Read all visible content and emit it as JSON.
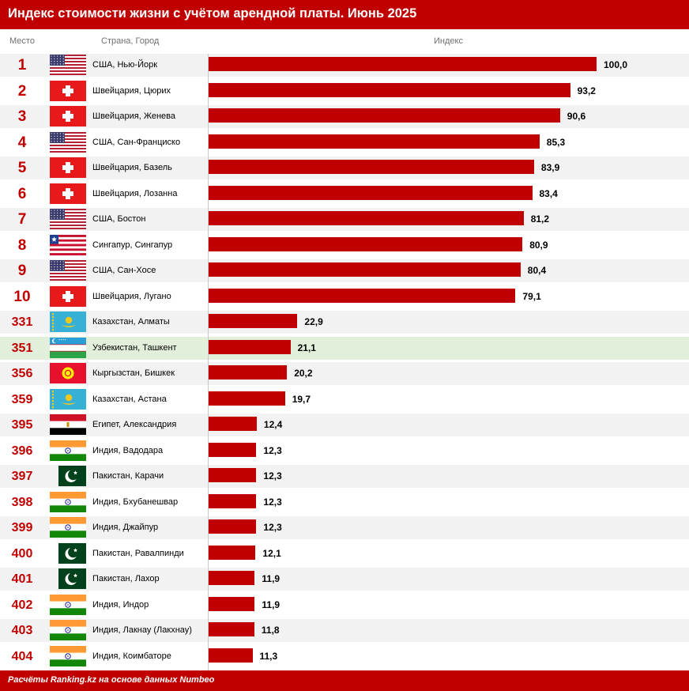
{
  "title": "Индекс стоимости жизни с учётом арендной платы. Июнь 2025",
  "headers": {
    "rank": "Место",
    "city": "Страна, Город",
    "index": "Индекс"
  },
  "footer": "Расчёты Ranking.kz на основе данных Numbeo",
  "colors": {
    "accent": "#c00000",
    "highlight_row": "#e2efda",
    "alt_row": "#f2f2f2"
  },
  "chart_data": {
    "type": "bar",
    "xlim": [
      0,
      100
    ],
    "highlight_row_index": 11,
    "rows": [
      {
        "rank": "1",
        "city": "США, Нью-Йорк",
        "flag": "us-flag-icon",
        "value": 100.0,
        "label": "100,0"
      },
      {
        "rank": "2",
        "city": "Швейцария, Цюрих",
        "flag": "switzerland-flag-icon",
        "value": 93.2,
        "label": "93,2"
      },
      {
        "rank": "3",
        "city": "Швейцария, Женева",
        "flag": "switzerland-flag-icon",
        "value": 90.6,
        "label": "90,6"
      },
      {
        "rank": "4",
        "city": "США, Сан-Франциско",
        "flag": "us-flag-icon",
        "value": 85.3,
        "label": "85,3"
      },
      {
        "rank": "5",
        "city": "Швейцария, Базель",
        "flag": "switzerland-flag-icon",
        "value": 83.9,
        "label": "83,9"
      },
      {
        "rank": "6",
        "city": "Швейцария, Лозанна",
        "flag": "switzerland-flag-icon",
        "value": 83.4,
        "label": "83,4"
      },
      {
        "rank": "7",
        "city": "США, Бостон",
        "flag": "us-flag-icon",
        "value": 81.2,
        "label": "81,2"
      },
      {
        "rank": "8",
        "city": "Сингапур, Сингапур",
        "flag": "singapore-flag-icon",
        "value": 80.9,
        "label": "80,9"
      },
      {
        "rank": "9",
        "city": "США, Сан-Хосе",
        "flag": "us-flag-icon",
        "value": 80.4,
        "label": "80,4"
      },
      {
        "rank": "10",
        "city": "Швейцария, Лугано",
        "flag": "switzerland-flag-icon",
        "value": 79.1,
        "label": "79,1"
      },
      {
        "rank": "331",
        "city": "Казахстан, Алматы",
        "flag": "kazakhstan-flag-icon",
        "value": 22.9,
        "label": "22,9"
      },
      {
        "rank": "351",
        "city": "Узбекистан, Ташкент",
        "flag": "uzbekistan-flag-icon",
        "value": 21.1,
        "label": "21,1"
      },
      {
        "rank": "356",
        "city": "Кыргызстан, Бишкек",
        "flag": "kyrgyzstan-flag-icon",
        "value": 20.2,
        "label": "20,2"
      },
      {
        "rank": "359",
        "city": "Казахстан, Астана",
        "flag": "kazakhstan-flag-icon",
        "value": 19.7,
        "label": "19,7"
      },
      {
        "rank": "395",
        "city": "Египет, Александрия",
        "flag": "egypt-flag-icon",
        "value": 12.4,
        "label": "12,4"
      },
      {
        "rank": "396",
        "city": "Индия, Вадодара",
        "flag": "india-flag-icon",
        "value": 12.3,
        "label": "12,3"
      },
      {
        "rank": "397",
        "city": "Пакистан, Карачи",
        "flag": "pakistan-flag-icon",
        "value": 12.3,
        "label": "12,3"
      },
      {
        "rank": "398",
        "city": "Индия, Бхубанешвар",
        "flag": "india-flag-icon",
        "value": 12.3,
        "label": "12,3"
      },
      {
        "rank": "399",
        "city": "Индия, Джайпур",
        "flag": "india-flag-icon",
        "value": 12.3,
        "label": "12,3"
      },
      {
        "rank": "400",
        "city": "Пакистан, Равалпинди",
        "flag": "pakistan-flag-icon",
        "value": 12.1,
        "label": "12,1"
      },
      {
        "rank": "401",
        "city": "Пакистан, Лахор",
        "flag": "pakistan-flag-icon",
        "value": 11.9,
        "label": "11,9"
      },
      {
        "rank": "402",
        "city": "Индия, Индор",
        "flag": "india-flag-icon",
        "value": 11.9,
        "label": "11,9"
      },
      {
        "rank": "403",
        "city": "Индия, Лакнау (Лакхнау)",
        "flag": "india-flag-icon",
        "value": 11.8,
        "label": "11,8"
      },
      {
        "rank": "404",
        "city": "Индия, Коимбаторе",
        "flag": "india-flag-icon",
        "value": 11.3,
        "label": "11,3"
      }
    ]
  }
}
